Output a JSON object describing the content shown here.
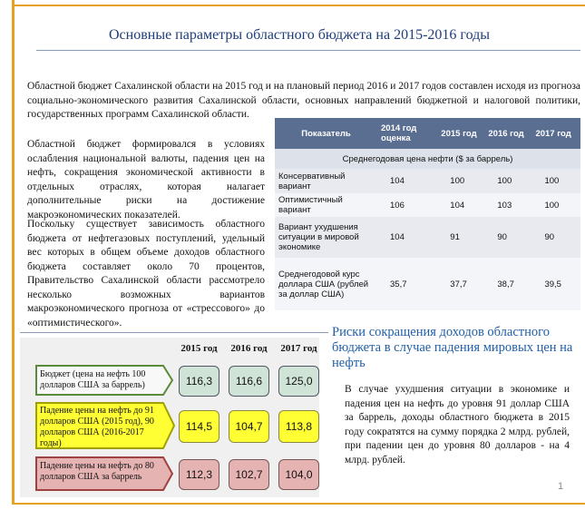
{
  "header": {
    "title": "Основные параметры областного бюджета на 2015-2016 годы"
  },
  "intro": "Областной бюджет Сахалинской области на 2015 год и на плановый период 2016 и 2017 годов составлен исходя из прогноза социально-экономического развития Сахалинской области, основных направлений бюджетной и налоговой политики, государственных программ Сахалинской области.",
  "paragraphs": [
    "Областной бюджет формировался в условиях ослабления национальной валюты, падения цен на нефть, сокращения экономической активности в отдельных отраслях, которая налагает дополнительные риски на достижение макроэкономических показателей.",
    "Поскольку существует зависимость областного бюджета от нефтегазовых поступлений, удельный вес которых в общем объеме доходов областного бюджета составляет около 70 процентов, Правительство Сахалинской области рассмотрело несколько возможных вариантов макроэкономического прогноза от «стрессового» до «оптимистического»."
  ],
  "table": {
    "headers": [
      "Показатель",
      "2014 год оценка",
      "2015 год",
      "2016 год",
      "2017 год"
    ],
    "section": "Среднегодовая цена нефти ($ за баррель)",
    "rows": [
      [
        "Консервативный вариант",
        "104",
        "100",
        "100",
        "100"
      ],
      [
        "Оптимистичный вариант",
        "106",
        "104",
        "103",
        "100"
      ],
      [
        "Вариант ухудшения ситуации в мировой экономике",
        "104",
        "91",
        "90",
        "90"
      ],
      [
        "Среднегодовой курс доллара США (рублей за доллар США)",
        "35,7",
        "37,7",
        "38,7",
        "39,5"
      ]
    ]
  },
  "risks": {
    "title": "Риски сокращения доходов областного бюджета в случае падения мировых цен на нефть",
    "years": [
      "2015 год",
      "2016 год",
      "2017 год"
    ],
    "rows": [
      {
        "label": "Бюджет (цена на нефть 100 долларов США за баррель)",
        "values": [
          "116,3",
          "116,6",
          "125,0"
        ]
      },
      {
        "label": "Падение цены на нефть до 91 долларов США (2015 год), 90 долларов США (2016-2017 годы)",
        "values": [
          "114,5",
          "104,7",
          "113,8"
        ]
      },
      {
        "label": "Падение цены на нефть до 80 долларов США за баррель",
        "values": [
          "112,3",
          "102,7",
          "104,0"
        ]
      }
    ],
    "text": "В случае ухудшения ситуации в экономике и падения цен на нефть до уровня 91 доллар США за баррель, доходы областного бюджета в 2015 году сократятся на сумму порядка 2 млрд. рублей, при падении цен до уровня 80 долларов - на 4 млрд. рублей."
  },
  "page_number": "1"
}
